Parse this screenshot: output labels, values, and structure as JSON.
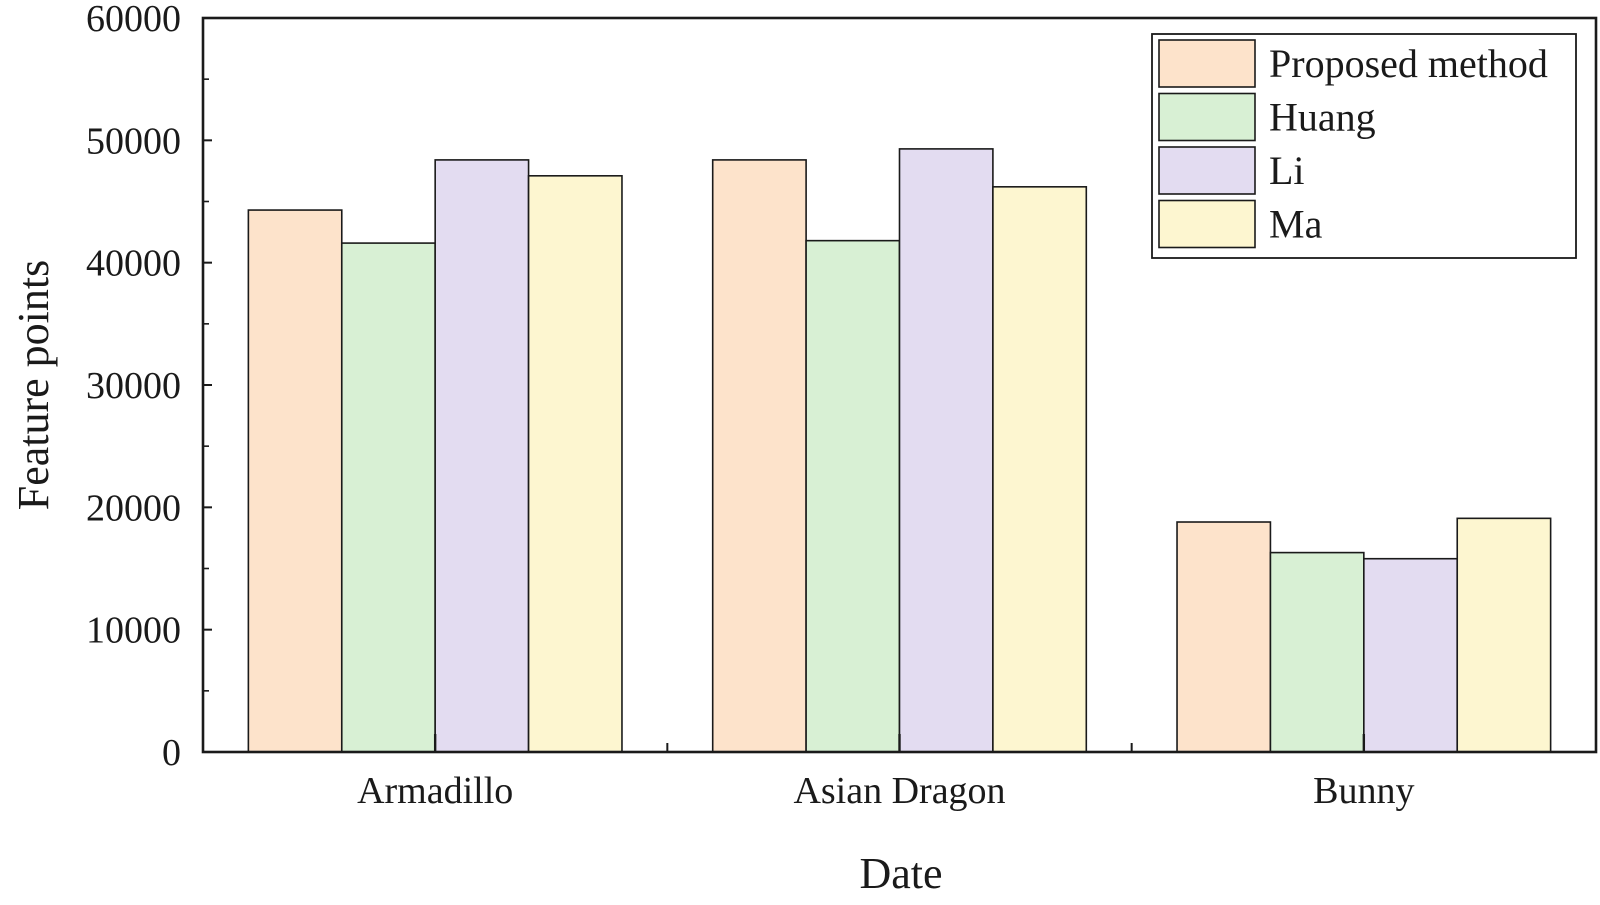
{
  "chart_data": {
    "type": "bar",
    "title": "",
    "xlabel": "Date",
    "ylabel": "Feature points",
    "ylim": [
      0,
      60000
    ],
    "yticks": [
      0,
      10000,
      20000,
      30000,
      40000,
      50000,
      60000
    ],
    "ytick_labels": [
      "0",
      "10000",
      "20000",
      "30000",
      "40000",
      "50000",
      "60000"
    ],
    "grid": false,
    "legend_position": "top-right",
    "categories": [
      "Armadillo",
      "Asian Dragon",
      "Bunny"
    ],
    "series": [
      {
        "name": "Proposed method",
        "color": "#fde3cb",
        "values": [
          44300,
          48400,
          18800
        ]
      },
      {
        "name": "Huang",
        "color": "#d8f0d4",
        "values": [
          41600,
          41800,
          16300
        ]
      },
      {
        "name": "Li",
        "color": "#e3dcf1",
        "values": [
          48400,
          49300,
          15800
        ]
      },
      {
        "name": "Ma",
        "color": "#fdf6d0",
        "values": [
          47100,
          46200,
          19100
        ]
      }
    ]
  }
}
